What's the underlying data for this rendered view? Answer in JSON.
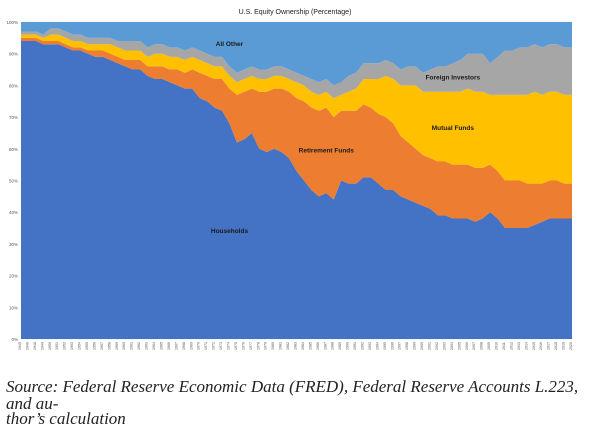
{
  "chart_data": {
    "type": "area",
    "title": "U.S. Equity Ownership (Percentage)",
    "xlabel": "",
    "ylabel": "",
    "ylim": [
      0,
      100
    ],
    "y_ticks": [
      "0%",
      "10%",
      "20%",
      "30%",
      "40%",
      "50%",
      "60%",
      "70%",
      "80%",
      "90%",
      "100%"
    ],
    "x": [
      "1945",
      "1946",
      "1948",
      "1949",
      "1950",
      "1951",
      "1952",
      "1953",
      "1954",
      "1955",
      "1956",
      "1957",
      "1958",
      "1959",
      "1960",
      "1961",
      "1962",
      "1963",
      "1964",
      "1965",
      "1966",
      "1967",
      "1968",
      "1969",
      "1970",
      "1971",
      "1972",
      "1973",
      "1974",
      "1975",
      "1976",
      "1977",
      "1978",
      "1979",
      "1980",
      "1981",
      "1982",
      "1983",
      "1984",
      "1985",
      "1986",
      "1987",
      "1988",
      "1989",
      "1990",
      "1991",
      "1992",
      "1993",
      "1994",
      "1995",
      "1996",
      "1997",
      "1998",
      "1999",
      "2000",
      "2001",
      "2002",
      "2003",
      "2004",
      "2005",
      "2006",
      "2007",
      "2008",
      "2009",
      "2010",
      "2011",
      "2012",
      "2013",
      "2014",
      "2015",
      "2016",
      "2017",
      "2018",
      "2019",
      "2020"
    ],
    "series": [
      {
        "name": "Households",
        "color": "#4472C4",
        "values": [
          94,
          94,
          94,
          93,
          93,
          93,
          92,
          91,
          91,
          90,
          89,
          89,
          88,
          87,
          86,
          85,
          85,
          83,
          82,
          82,
          81,
          80,
          79,
          79,
          76,
          75,
          73,
          72,
          68,
          62,
          63,
          65,
          60,
          59,
          60,
          59,
          57,
          53,
          50,
          47,
          45,
          46,
          44,
          50,
          49,
          49,
          51,
          51,
          49,
          47,
          47,
          45,
          44,
          43,
          42,
          41,
          39,
          39,
          38,
          38,
          38,
          37,
          38,
          40,
          38,
          35,
          35,
          35,
          35,
          36,
          37,
          38,
          38,
          38,
          38
        ]
      },
      {
        "name": "Retirement Funds",
        "color": "#ED7D31",
        "values": [
          1,
          1,
          1,
          1,
          1,
          1,
          1,
          1,
          1,
          1,
          2,
          2,
          2,
          2,
          2,
          3,
          3,
          3,
          4,
          4,
          4,
          5,
          5,
          6,
          8,
          8,
          9,
          10,
          11,
          15,
          15,
          14,
          18,
          19,
          19,
          20,
          21,
          23,
          25,
          26,
          27,
          27,
          26,
          22,
          23,
          23,
          23,
          22,
          22,
          23,
          21,
          19,
          18,
          17,
          16,
          16,
          17,
          17,
          17,
          17,
          17,
          17,
          16,
          15,
          15,
          15,
          15,
          15,
          14,
          13,
          12,
          12,
          12,
          11,
          11
        ]
      },
      {
        "name": "Mutual Funds",
        "color": "#FFC000",
        "values": [
          1,
          1,
          1,
          1,
          2,
          2,
          2,
          2,
          2,
          2,
          2,
          2,
          3,
          3,
          3,
          3,
          3,
          3,
          4,
          4,
          4,
          4,
          4,
          4,
          4,
          4,
          4,
          4,
          4,
          4,
          4,
          4,
          4,
          4,
          4,
          4,
          4,
          5,
          5,
          5,
          5,
          5,
          6,
          5,
          6,
          7,
          8,
          9,
          11,
          13,
          14,
          16,
          18,
          20,
          20,
          21,
          22,
          22,
          23,
          23,
          24,
          24,
          24,
          22,
          24,
          27,
          27,
          27,
          28,
          29,
          28,
          28,
          28,
          28,
          28
        ]
      },
      {
        "name": "Foreign Investors",
        "color": "#A6A6A6",
        "values": [
          1,
          1,
          1,
          1,
          2,
          2,
          2,
          2,
          2,
          2,
          2,
          2,
          2,
          2,
          3,
          3,
          3,
          3,
          3,
          3,
          3,
          3,
          3,
          3,
          3,
          3,
          3,
          3,
          3,
          3,
          3,
          3,
          3,
          3,
          3,
          3,
          3,
          3,
          3,
          4,
          4,
          4,
          4,
          4,
          5,
          5,
          5,
          5,
          5,
          5,
          5,
          5,
          6,
          6,
          6,
          7,
          8,
          8,
          9,
          10,
          11,
          12,
          12,
          10,
          12,
          14,
          14,
          15,
          15,
          15,
          15,
          15,
          15,
          15,
          15
        ]
      },
      {
        "name": "All Other",
        "color": "#5B9BD5",
        "values": [
          3,
          3,
          3,
          4,
          2,
          2,
          3,
          4,
          4,
          5,
          5,
          5,
          5,
          6,
          6,
          6,
          6,
          8,
          7,
          7,
          8,
          8,
          9,
          8,
          9,
          10,
          11,
          11,
          14,
          16,
          15,
          14,
          15,
          15,
          14,
          14,
          15,
          16,
          17,
          18,
          19,
          18,
          20,
          19,
          17,
          16,
          13,
          13,
          13,
          12,
          13,
          15,
          14,
          14,
          16,
          15,
          14,
          14,
          13,
          12,
          10,
          10,
          10,
          13,
          11,
          9,
          9,
          8,
          8,
          7,
          8,
          7,
          7,
          8,
          8
        ]
      }
    ],
    "annotations": [
      {
        "series": "All Other",
        "text": "All Other"
      },
      {
        "series": "Foreign Investors",
        "text": "Foreign Investors"
      },
      {
        "series": "Mutual Funds",
        "text": "Mutual Funds"
      },
      {
        "series": "Retirement Funds",
        "text": "Retirement Funds"
      },
      {
        "series": "Households",
        "text": "Households"
      }
    ]
  },
  "caption": {
    "line1": "Source: Federal Reserve Economic Data (FRED), Federal Reserve Accounts L.223, and au-",
    "line2": "thor’s calculation"
  }
}
